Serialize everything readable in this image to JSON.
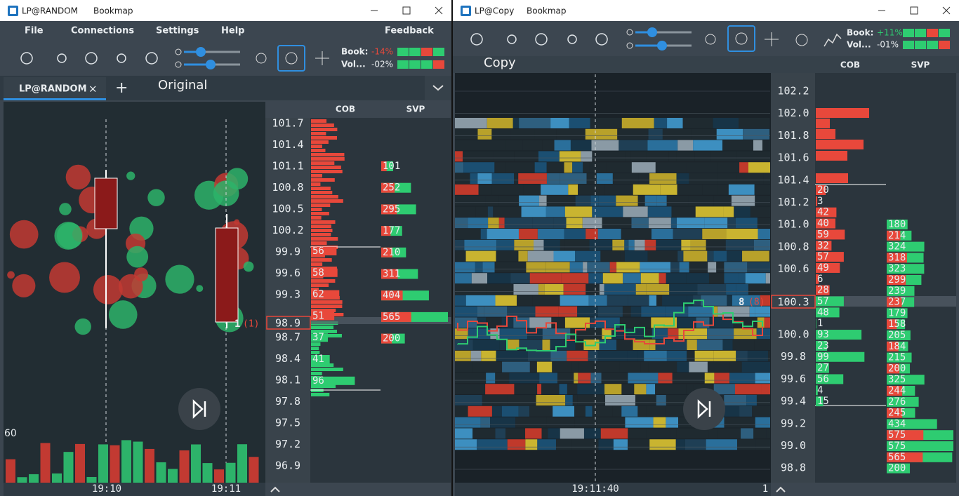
{
  "left_window": {
    "title": "LP@RANDOM",
    "app": "Bookmap",
    "menu": [
      "File",
      "Connections",
      "Settings",
      "Help",
      "Feedback"
    ],
    "book_label": "Book:",
    "book_change": "-14%",
    "vol_label": "Vol...",
    "vol_change": "-02%",
    "tab": "LP@RANDOM",
    "tab_close": "×",
    "tab_add": "+",
    "caption": "Original",
    "cob_header": "COB",
    "svp_header": "SVP",
    "prices": [
      "101.7",
      "101.4",
      "101.1",
      "100.8",
      "100.5",
      "100.2",
      "99.9",
      "99.6",
      "99.3",
      "98.7",
      "98.4",
      "98.1",
      "97.8",
      "97.5",
      "97.2",
      "96.9"
    ],
    "current_price": "98.9",
    "cob_sizes": [
      56,
      58,
      62,
      51,
      37,
      41,
      96
    ],
    "svp_volumes": [
      101,
      252,
      295,
      177,
      210,
      311,
      404,
      565,
      200
    ],
    "trade_size": 1,
    "trade_size_total": "(1)",
    "volume_max": 60,
    "times": [
      "19:10",
      "19:11"
    ]
  },
  "right_window": {
    "title": "LP@Copy",
    "app": "Bookmap",
    "book_label": "Book:",
    "book_change": "+11%",
    "vol_label": "Vol...",
    "vol_change": "-01%",
    "caption": "Copy",
    "cob_header": "COB",
    "svp_header": "SVP",
    "prices": [
      "102.2",
      "102.0",
      "101.8",
      "101.6",
      "101.4",
      "101.2",
      "101.0",
      "100.8",
      "100.6",
      "100.0",
      "99.8",
      "99.6",
      "99.4",
      "99.2",
      "99.0",
      "98.8"
    ],
    "current_price": "100.3",
    "cob_sizes": [
      20,
      3,
      42,
      40,
      59,
      32,
      57,
      49,
      6,
      28,
      57,
      48,
      1,
      93,
      23,
      99,
      27,
      56,
      4,
      15
    ],
    "svp_volumes": [
      180,
      214,
      324,
      318,
      323,
      299,
      239,
      237,
      179,
      158,
      205,
      184,
      215,
      200,
      325,
      244,
      276,
      245,
      434,
      575,
      575,
      565,
      200
    ],
    "trade_size": 8,
    "trade_size_total": "(8)",
    "times": [
      "19:11:40",
      "1"
    ]
  }
}
